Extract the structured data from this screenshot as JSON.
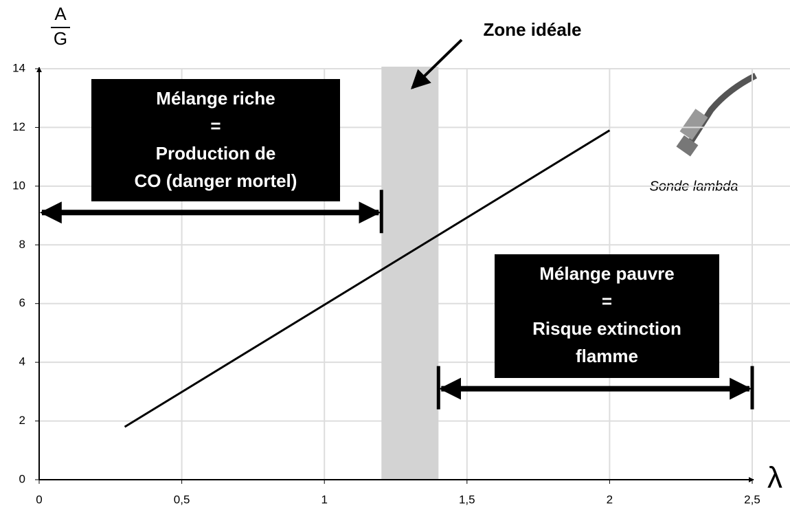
{
  "chart_data": {
    "type": "line",
    "y_label_top": "A",
    "y_label_bottom": "G",
    "x_label": "λ",
    "x": [
      0.3,
      2
    ],
    "values": [
      1.8,
      11.9
    ],
    "color": "#000000",
    "xlim": [
      0,
      2.5
    ],
    "ylim": [
      0,
      14
    ],
    "xticks": [
      0,
      {
        "value": 0.5,
        "label": "0,5"
      },
      1,
      {
        "value": 1.5,
        "label": "1,5"
      },
      2,
      {
        "value": 2.5,
        "label": "2,5"
      }
    ],
    "yticks": [
      0,
      2,
      4,
      6,
      8,
      10,
      12,
      14
    ],
    "grid": true,
    "ideal_zone": {
      "label": "Zone idéale",
      "x": [
        1.2,
        1.4
      ]
    },
    "rich": {
      "lines": [
        "Mélange riche",
        "=",
        "Production de",
        "CO (danger mortel)"
      ],
      "x": [
        0,
        1.2
      ],
      "y": 9.1
    },
    "lean": {
      "lines": [
        "Mélange pauvre",
        "=",
        "Risque extinction",
        "flamme"
      ],
      "x": [
        1.4,
        2.5
      ],
      "y": 3.1
    },
    "sensor_caption": "Sonde lambda"
  }
}
